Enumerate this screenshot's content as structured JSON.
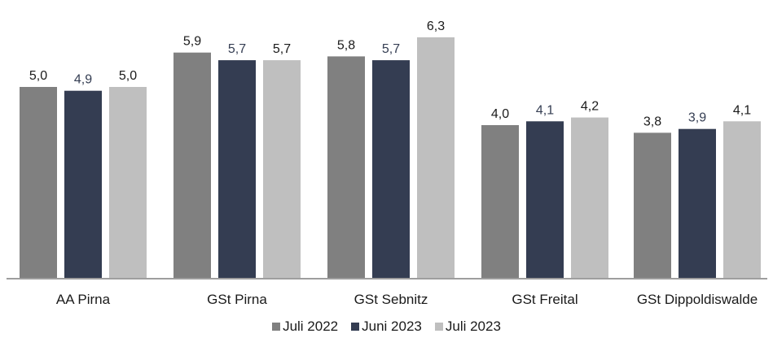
{
  "chart_data": {
    "type": "bar",
    "categories": [
      "AA Pirna",
      "GSt Pirna",
      "GSt Sebnitz",
      "GSt Freital",
      "GSt Dippoldiswalde"
    ],
    "series": [
      {
        "name": "Juli 2022",
        "values": [
          5.0,
          5.9,
          5.8,
          4.0,
          3.8
        ],
        "labels": [
          "5,0",
          "5,9",
          "5,8",
          "4,0",
          "3,8"
        ]
      },
      {
        "name": "Juni 2023",
        "values": [
          4.9,
          5.7,
          5.7,
          4.1,
          3.9
        ],
        "labels": [
          "4,9",
          "5,7",
          "5,7",
          "4,1",
          "3,9"
        ]
      },
      {
        "name": "Juli 2023",
        "values": [
          5.0,
          5.7,
          6.3,
          4.2,
          4.1
        ],
        "labels": [
          "5,0",
          "5,7",
          "6,3",
          "4,2",
          "4,1"
        ]
      }
    ],
    "colors": [
      "#808080",
      "#343d52",
      "#bfbfbf"
    ],
    "title": "",
    "xlabel": "",
    "ylabel": "",
    "ylim": [
      0,
      6.3
    ],
    "grid": false,
    "legend_position": "bottom"
  }
}
